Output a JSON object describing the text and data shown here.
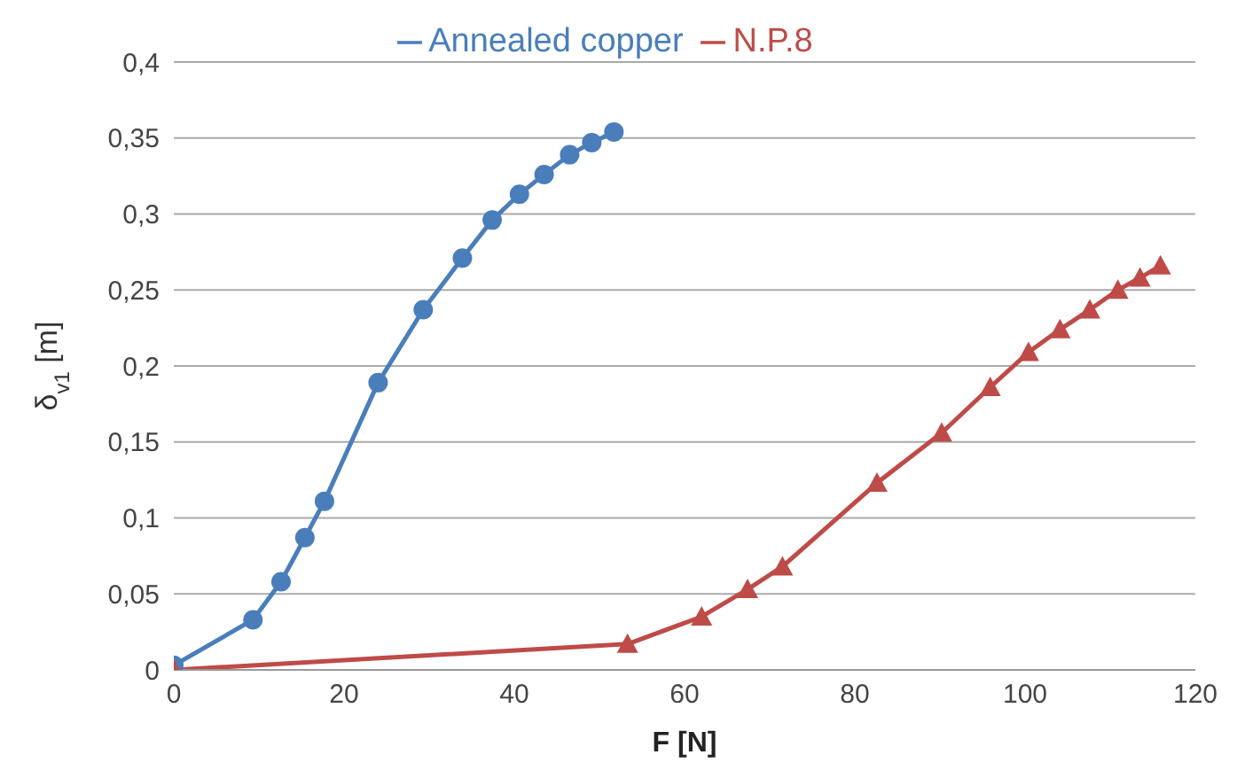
{
  "chart_data": {
    "type": "line",
    "xlabel": "F [N]",
    "ylabel": "δ$_{v1}$ [m]",
    "xlim": [
      0,
      120
    ],
    "xticks": [
      0,
      20,
      40,
      60,
      80,
      100,
      120
    ],
    "ylim": [
      0,
      0.4
    ],
    "yticks": [
      {
        "value": 0,
        "label": "0"
      },
      {
        "value": 0.05,
        "label": "0,05"
      },
      {
        "value": 0.1,
        "label": "0,1"
      },
      {
        "value": 0.15,
        "label": "0,15"
      },
      {
        "value": 0.2,
        "label": "0,2"
      },
      {
        "value": 0.25,
        "label": "0,25"
      },
      {
        "value": 0.3,
        "label": "0,3"
      },
      {
        "value": 0.35,
        "label": "0,35"
      },
      {
        "value": 0.4,
        "label": "0,4"
      }
    ],
    "grid": "y",
    "legend": "top",
    "series": [
      {
        "name": "Annealed copper",
        "color": "#4a7ebb",
        "marker": "circle",
        "x": [
          0,
          9.3,
          12.6,
          15.4,
          17.7,
          24,
          29.3,
          33.9,
          37.4,
          40.6,
          43.5,
          46.5,
          49.1,
          51.7
        ],
        "values": [
          0.003,
          0.033,
          0.058,
          0.087,
          0.111,
          0.189,
          0.237,
          0.271,
          0.296,
          0.313,
          0.326,
          0.339,
          0.347,
          0.354
        ]
      },
      {
        "name": "N.P.8",
        "color": "#be4b48",
        "marker": "triangle",
        "x": [
          0,
          53.3,
          62,
          67.4,
          71.5,
          82.6,
          90.2,
          95.9,
          100.4,
          104.1,
          107.6,
          110.9,
          113.5,
          115.9
        ],
        "values": [
          0,
          0.017,
          0.035,
          0.053,
          0.068,
          0.123,
          0.156,
          0.186,
          0.209,
          0.224,
          0.237,
          0.25,
          0.258,
          0.266
        ]
      }
    ]
  }
}
